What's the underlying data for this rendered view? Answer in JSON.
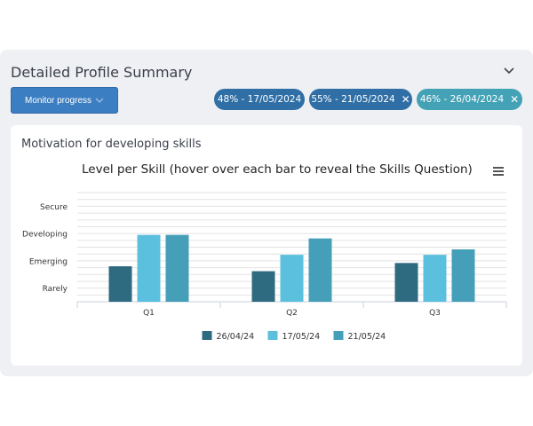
{
  "panel": {
    "title": "Detailed Profile Summary",
    "collapse_icon": "chevron-down-icon"
  },
  "toolbar": {
    "monitor_label": "Monitor progress",
    "monitor_icon": "chevron-down-icon"
  },
  "filters": [
    {
      "label": "48% - 17/05/2024",
      "removable": false,
      "color": "#2f6fa6"
    },
    {
      "label": "55% - 21/05/2024",
      "removable": true,
      "color": "#2f6fa6"
    },
    {
      "label": "46% - 26/04/2024",
      "removable": true,
      "color": "#43a2b6"
    }
  ],
  "card": {
    "title": "Motivation for developing skills"
  },
  "menu_icon": "hamburger-menu-icon",
  "chart_data": {
    "type": "bar",
    "title": "Level per Skill (hover over each bar to reveal the Skills Question)",
    "categories": [
      "Q1",
      "Q2",
      "Q3"
    ],
    "y_levels": [
      "Rarely",
      "Emerging",
      "Developing",
      "Secure"
    ],
    "ylim": [
      0.5,
      4.5
    ],
    "series": [
      {
        "name": "26/04/24",
        "color": "#2f6b80",
        "values": [
          1.8,
          1.62,
          1.92
        ]
      },
      {
        "name": "17/05/24",
        "color": "#5bc0de",
        "values": [
          2.95,
          2.22,
          2.22
        ]
      },
      {
        "name": "21/05/24",
        "color": "#459fb8",
        "values": [
          2.95,
          2.82,
          2.42
        ]
      }
    ],
    "grid": true,
    "legend_position": "bottom-center"
  }
}
